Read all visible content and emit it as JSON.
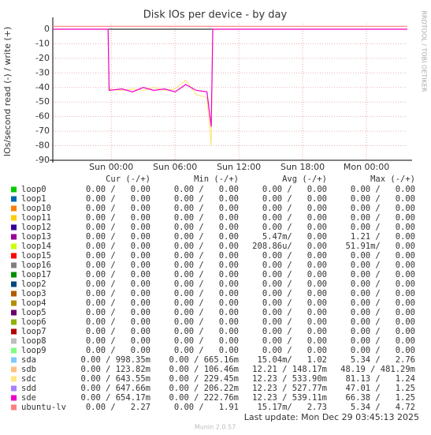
{
  "chart_data": {
    "type": "line",
    "title": "Disk IOs per device - by day",
    "y_label": "IOs/second read (-) / write (+)",
    "side_text": "RRDTOOL / TOBI OETIKER",
    "last_update": "Last update: Mon Dec 29 03:45:13 2025",
    "footer": "Munin 2.0.57",
    "xlim": [
      -5.5,
      27.85
    ],
    "ylim": [
      -90,
      3.8
    ],
    "grid": true,
    "xticks": [
      {
        "value": 0,
        "label": "Sun 00:00"
      },
      {
        "value": 6,
        "label": "Sun 06:00"
      },
      {
        "value": 12,
        "label": "Sun 12:00"
      },
      {
        "value": 18,
        "label": "Sun 18:00"
      },
      {
        "value": 24,
        "label": "Mon 00:00"
      }
    ],
    "yticks": [
      0,
      -10,
      -20,
      -30,
      -40,
      -50,
      -60,
      -70,
      -80,
      -90
    ],
    "x": [
      -5.5,
      -3,
      -0.3,
      -0.2,
      1,
      2,
      3,
      4,
      5,
      6,
      7,
      8,
      9,
      9.4,
      9.55,
      12,
      18,
      24,
      27.85
    ],
    "columns": [
      "Cur (-/+)",
      "Min (-/+)",
      "Avg (-/+)",
      "Max (-/+)"
    ],
    "series": [
      {
        "name": "loop0",
        "color": "#00CC00",
        "cur": "0.00 /   0.00",
        "min": "0.00 /   0.00",
        "avg": "0.00 /   0.00",
        "max": "0.00 /   0.00"
      },
      {
        "name": "loop1",
        "color": "#0066B3",
        "cur": "0.00 /   0.00",
        "min": "0.00 /   0.00",
        "avg": "0.00 /   0.00",
        "max": "0.00 /   0.00"
      },
      {
        "name": "loop10",
        "color": "#FF8000",
        "cur": "0.00 /   0.00",
        "min": "0.00 /   0.00",
        "avg": "0.00 /   0.00",
        "max": "0.00 /   0.00"
      },
      {
        "name": "loop11",
        "color": "#FFCC00",
        "cur": "0.00 /   0.00",
        "min": "0.00 /   0.00",
        "avg": "0.00 /   0.00",
        "max": "0.00 /   0.00"
      },
      {
        "name": "loop12",
        "color": "#330099",
        "cur": "0.00 /   0.00",
        "min": "0.00 /   0.00",
        "avg": "0.00 /   0.00",
        "max": "0.00 /   0.00"
      },
      {
        "name": "loop13",
        "color": "#990099",
        "cur": "0.00 /   0.00",
        "min": "0.00 /   0.00",
        "avg": "5.47m/   0.00",
        "max": "1.21 /   0.00"
      },
      {
        "name": "loop14",
        "color": "#CCFF00",
        "cur": "0.00 /   0.00",
        "min": "0.00 /   0.00",
        "avg": "208.86u/   0.00",
        "max": "51.91m/   0.00"
      },
      {
        "name": "loop15",
        "color": "#FF0000",
        "cur": "0.00 /   0.00",
        "min": "0.00 /   0.00",
        "avg": "0.00 /   0.00",
        "max": "0.00 /   0.00"
      },
      {
        "name": "loop16",
        "color": "#808080",
        "cur": "0.00 /   0.00",
        "min": "0.00 /   0.00",
        "avg": "0.00 /   0.00",
        "max": "0.00 /   0.00"
      },
      {
        "name": "loop17",
        "color": "#008F00",
        "cur": "0.00 /   0.00",
        "min": "0.00 /   0.00",
        "avg": "0.00 /   0.00",
        "max": "0.00 /   0.00"
      },
      {
        "name": "loop2",
        "color": "#00487D",
        "cur": "0.00 /   0.00",
        "min": "0.00 /   0.00",
        "avg": "0.00 /   0.00",
        "max": "0.00 /   0.00"
      },
      {
        "name": "loop3",
        "color": "#B35A00",
        "cur": "0.00 /   0.00",
        "min": "0.00 /   0.00",
        "avg": "0.00 /   0.00",
        "max": "0.00 /   0.00"
      },
      {
        "name": "loop4",
        "color": "#B38F00",
        "cur": "0.00 /   0.00",
        "min": "0.00 /   0.00",
        "avg": "0.00 /   0.00",
        "max": "0.00 /   0.00"
      },
      {
        "name": "loop5",
        "color": "#6B006B",
        "cur": "0.00 /   0.00",
        "min": "0.00 /   0.00",
        "avg": "0.00 /   0.00",
        "max": "0.00 /   0.00"
      },
      {
        "name": "loop6",
        "color": "#8FB300",
        "cur": "0.00 /   0.00",
        "min": "0.00 /   0.00",
        "avg": "0.00 /   0.00",
        "max": "0.00 /   0.00"
      },
      {
        "name": "loop7",
        "color": "#B30000",
        "cur": "0.00 /   0.00",
        "min": "0.00 /   0.00",
        "avg": "0.00 /   0.00",
        "max": "0.00 /   0.00"
      },
      {
        "name": "loop8",
        "color": "#BEBEBE",
        "cur": "0.00 /   0.00",
        "min": "0.00 /   0.00",
        "avg": "0.00 /   0.00",
        "max": "0.00 /   0.00"
      },
      {
        "name": "loop9",
        "color": "#80FF80",
        "cur": "0.00 /   0.00",
        "min": "0.00 /   0.00",
        "avg": "0.00 /   0.00",
        "max": "0.00 /   0.00"
      },
      {
        "name": "sda",
        "color": "#80C9FF",
        "cur": "0.00 / 998.35m",
        "min": "0.00 / 665.16m",
        "avg": "15.04m/   1.02",
        "max": "5.34 /   2.76"
      },
      {
        "name": "sdb",
        "color": "#FFC080",
        "cur": "0.00 / 123.82m",
        "min": "0.00 / 106.46m",
        "avg": "12.21 / 148.17m",
        "max": "48.19 / 481.29m"
      },
      {
        "name": "sdc",
        "color": "#FFE680",
        "cur": "0.00 / 643.55m",
        "min": "0.00 / 229.45m",
        "avg": "12.23 / 533.90m",
        "max": "81.13 /   1.24",
        "values": [
          0,
          0,
          0,
          -41,
          -42,
          -41,
          -42,
          -40,
          -42,
          -41,
          -35,
          -45,
          -47,
          -80,
          0,
          0,
          0,
          0,
          0
        ]
      },
      {
        "name": "sdd",
        "color": "#AA80FF",
        "cur": "0.00 / 647.66m",
        "min": "0.00 / 206.22m",
        "avg": "12.23 / 527.77m",
        "max": "47.01 /   1.25"
      },
      {
        "name": "sde",
        "color": "#EE00CC",
        "cur": "0.00 / 654.17m",
        "min": "0.00 / 222.76m",
        "avg": "12.23 / 539.11m",
        "max": "66.38 /   1.25",
        "values": [
          0,
          0,
          0,
          -42,
          -41,
          -43,
          -40,
          -42,
          -41,
          -43,
          -38,
          -42,
          -43,
          -67,
          0,
          0,
          0,
          0,
          0
        ]
      },
      {
        "name": "ubuntu-lv",
        "color": "#FF8080",
        "cur": "0.00 /   2.27",
        "min": "0.00 /   1.91",
        "avg": "15.17m/   2.73",
        "max": "5.34 /   4.72",
        "values": [
          2,
          2,
          2,
          2,
          2,
          2,
          2,
          2,
          2,
          2,
          2,
          2,
          2,
          2,
          2,
          2,
          2,
          2,
          2
        ]
      }
    ]
  }
}
